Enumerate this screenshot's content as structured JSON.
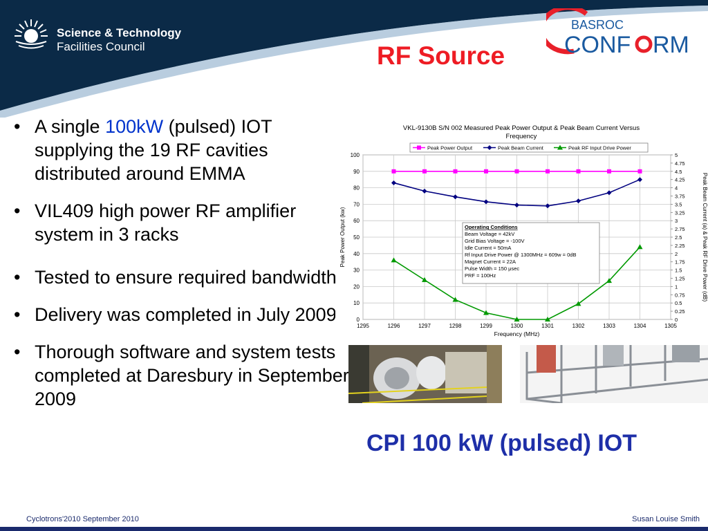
{
  "header": {
    "org_line1": "Science & Technology",
    "org_line2": "Facilities Council",
    "title": "RF Source",
    "logo_small": "BASROC",
    "logo_big_left": "CONF",
    "logo_big_right": "RM"
  },
  "bullets": [
    {
      "pre": "A single ",
      "highlight": "100kW",
      "post": " (pulsed) IOT supplying the 19 RF cavities distributed around EMMA"
    },
    {
      "text": "VIL409 high power RF amplifier system in 3 racks"
    },
    {
      "text": "Tested to ensure required bandwidth"
    },
    {
      "text": "Delivery was completed in July 2009"
    },
    {
      "text": "Thorough software and system tests completed at Daresbury in September 2009"
    }
  ],
  "caption": "CPI 100 kW (pulsed) IOT",
  "footer": {
    "left": "Cyclotrons'2010 September 2010",
    "right": "Susan Louise Smith"
  },
  "colors": {
    "header_dark": "#0b2a47",
    "title_red": "#ee1c24",
    "caption_blue": "#1e2fa8",
    "highlight_blue": "#0033cc",
    "series_power": "#ff00ff",
    "series_current": "#000080",
    "series_drive": "#009900"
  },
  "chart_data": {
    "type": "line",
    "title": "VKL-9130B S/N 002 Measured Peak Power Output & Peak Beam Current Versus Frequency",
    "xlabel": "Frequency (MHz)",
    "ylabel": "Peak Power Output (kw)",
    "y2label": "Peak Beam Current (a) & Peak RF Drive Power (dB)",
    "xlim": [
      1295,
      1305
    ],
    "ylim": [
      0,
      100
    ],
    "y2lim": [
      0,
      5
    ],
    "xticks": [
      "1295",
      "1296",
      "1297",
      "1298",
      "1299",
      "1300",
      "1301",
      "1302",
      "1303",
      "1304",
      "1305"
    ],
    "yticks": [
      "0",
      "10",
      "20",
      "30",
      "40",
      "50",
      "60",
      "70",
      "80",
      "90",
      "100"
    ],
    "y2ticks": [
      "0",
      "0.25",
      "0.5",
      "0.75",
      "1",
      "1.25",
      "1.5",
      "1.75",
      "2",
      "2.25",
      "2.5",
      "2.75",
      "3",
      "3.25",
      "3.5",
      "3.75",
      "4",
      "4.25",
      "4.5",
      "4.75",
      "5"
    ],
    "legend_position": "top",
    "grid": true,
    "x": [
      1296,
      1297,
      1298,
      1299,
      1300,
      1301,
      1302,
      1303,
      1304
    ],
    "series": [
      {
        "name": "Peak Power Output",
        "axis": "left",
        "values": [
          90,
          90,
          90,
          90,
          90,
          90,
          90,
          90,
          90
        ]
      },
      {
        "name": "Peak Beam Current",
        "axis": "left",
        "values": [
          83,
          78,
          74.5,
          71.5,
          69.5,
          69,
          72,
          77,
          85
        ]
      },
      {
        "name": "Peak RF Input Drive Power",
        "axis": "left",
        "values": [
          36,
          24,
          12,
          4,
          0,
          0,
          9.5,
          23.5,
          44
        ]
      }
    ],
    "annotation": {
      "heading": "Operating Conditions",
      "lines": [
        "Beam Voltage = 42kV",
        "Grid Bias Voltage = -100V",
        "Idle Current = 50mA",
        "Rf Input Drive Power @ 1300MHz = 609w = 0dB",
        "Magnet Current = 22A",
        "Pulse Width = 150 μsec",
        "PRF = 100Hz"
      ]
    }
  }
}
